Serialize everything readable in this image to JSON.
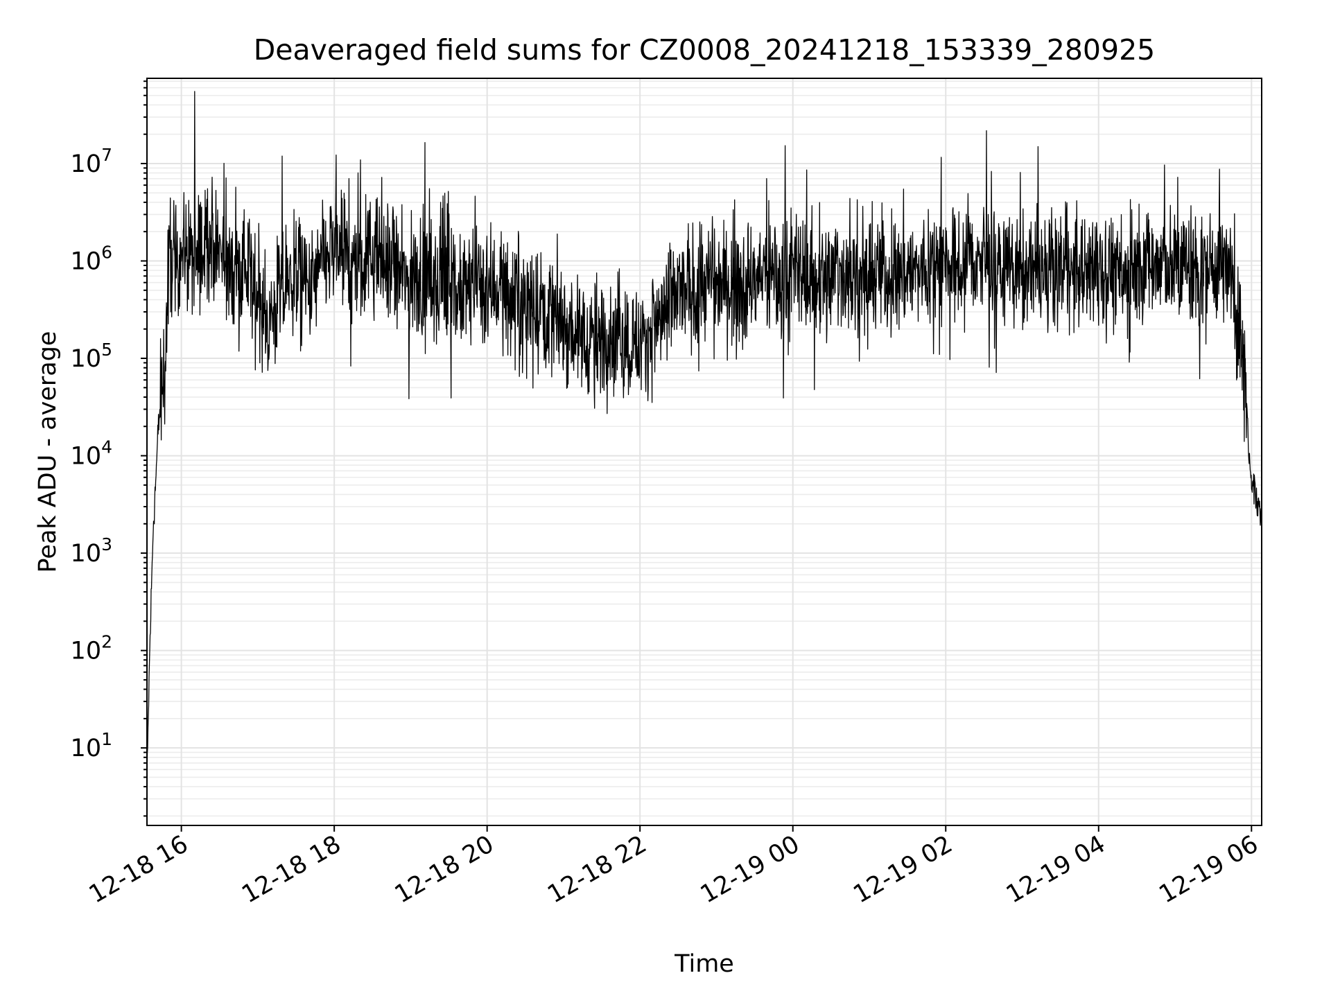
{
  "chart_data": {
    "type": "line",
    "title": "Deaveraged field sums for CZ0008_20241218_153339_280925",
    "xlabel": "Time",
    "ylabel": "Peak ADU - average",
    "yscale": "log",
    "ylim": [
      1.6,
      75000000
    ],
    "xlim": [
      "2024-12-18 15:33",
      "2024-12-19 06:08"
    ],
    "grid": true,
    "legend": "none",
    "line_color": "#000000",
    "x_ticks": [
      {
        "value": "2024-12-18 16:00",
        "label": "12-18 16"
      },
      {
        "value": "2024-12-18 18:00",
        "label": "12-18 18"
      },
      {
        "value": "2024-12-18 20:00",
        "label": "12-18 20"
      },
      {
        "value": "2024-12-18 22:00",
        "label": "12-18 22"
      },
      {
        "value": "2024-12-19 00:00",
        "label": "12-19 00"
      },
      {
        "value": "2024-12-19 02:00",
        "label": "12-19 02"
      },
      {
        "value": "2024-12-19 04:00",
        "label": "12-19 04"
      },
      {
        "value": "2024-12-19 06:00",
        "label": "12-19 06"
      }
    ],
    "y_ticks": [
      {
        "value": 10,
        "base": "10",
        "exp": "1"
      },
      {
        "value": 100,
        "base": "10",
        "exp": "2"
      },
      {
        "value": 1000,
        "base": "10",
        "exp": "3"
      },
      {
        "value": 10000,
        "base": "10",
        "exp": "4"
      },
      {
        "value": 100000,
        "base": "10",
        "exp": "5"
      },
      {
        "value": 1000000,
        "base": "10",
        "exp": "6"
      },
      {
        "value": 10000000,
        "base": "10",
        "exp": "7"
      }
    ],
    "series": [
      {
        "x": [
          "2024-12-18 15:33",
          "2024-12-18 15:35",
          "2024-12-18 15:38",
          "2024-12-18 15:40",
          "2024-12-18 15:42",
          "2024-12-18 15:45",
          "2024-12-18 15:48",
          "2024-12-18 15:50",
          "2024-12-18 15:52",
          "2024-12-18 15:55",
          "2024-12-18 16:00",
          "2024-12-18 16:10",
          "2024-12-18 16:20",
          "2024-12-18 16:30",
          "2024-12-18 16:40",
          "2024-12-18 16:50",
          "2024-12-18 17:00",
          "2024-12-18 17:10",
          "2024-12-18 17:20",
          "2024-12-18 17:30",
          "2024-12-18 17:40",
          "2024-12-18 17:50",
          "2024-12-18 18:00",
          "2024-12-18 18:10",
          "2024-12-18 18:20",
          "2024-12-18 18:30",
          "2024-12-18 18:40",
          "2024-12-18 18:50",
          "2024-12-18 19:00",
          "2024-12-18 19:10",
          "2024-12-18 19:20",
          "2024-12-18 19:30",
          "2024-12-18 19:40",
          "2024-12-18 19:50",
          "2024-12-18 20:00",
          "2024-12-18 20:10",
          "2024-12-18 20:20",
          "2024-12-18 20:30",
          "2024-12-18 20:40",
          "2024-12-18 20:50",
          "2024-12-18 21:00",
          "2024-12-18 21:10",
          "2024-12-18 21:20",
          "2024-12-18 21:30",
          "2024-12-18 21:40",
          "2024-12-18 21:50",
          "2024-12-18 22:00",
          "2024-12-18 22:10",
          "2024-12-18 22:20",
          "2024-12-18 22:30",
          "2024-12-18 22:40",
          "2024-12-18 22:50",
          "2024-12-18 23:00",
          "2024-12-18 23:10",
          "2024-12-18 23:20",
          "2024-12-18 23:30",
          "2024-12-18 23:40",
          "2024-12-18 23:50",
          "2024-12-19 00:00",
          "2024-12-19 00:10",
          "2024-12-19 00:20",
          "2024-12-19 00:30",
          "2024-12-19 00:40",
          "2024-12-19 00:50",
          "2024-12-19 01:00",
          "2024-12-19 01:10",
          "2024-12-19 01:20",
          "2024-12-19 01:30",
          "2024-12-19 01:40",
          "2024-12-19 01:50",
          "2024-12-19 02:00",
          "2024-12-19 02:10",
          "2024-12-19 02:20",
          "2024-12-19 02:30",
          "2024-12-19 02:40",
          "2024-12-19 02:50",
          "2024-12-19 03:00",
          "2024-12-19 03:10",
          "2024-12-19 03:20",
          "2024-12-19 03:30",
          "2024-12-19 03:40",
          "2024-12-19 03:50",
          "2024-12-19 04:00",
          "2024-12-19 04:10",
          "2024-12-19 04:20",
          "2024-12-19 04:30",
          "2024-12-19 04:40",
          "2024-12-19 04:50",
          "2024-12-19 05:00",
          "2024-12-19 05:10",
          "2024-12-19 05:20",
          "2024-12-19 05:30",
          "2024-12-19 05:40",
          "2024-12-19 05:45",
          "2024-12-19 05:50",
          "2024-12-19 05:55",
          "2024-12-19 05:58",
          "2024-12-19 06:00",
          "2024-12-19 06:03",
          "2024-12-19 06:06",
          "2024-12-19 06:08"
        ],
        "y": [
          4,
          80,
          2000,
          6000,
          20000,
          50000,
          150000,
          900000,
          1200000,
          800000,
          1500000,
          900000,
          2000000,
          1200000,
          700000,
          900000,
          400000,
          250000,
          500000,
          800000,
          450000,
          900000,
          1300000,
          1000000,
          800000,
          1200000,
          900000,
          700000,
          600000,
          700000,
          500000,
          600000,
          400000,
          700000,
          500000,
          600000,
          400000,
          450000,
          350000,
          300000,
          250000,
          180000,
          160000,
          150000,
          180000,
          150000,
          140000,
          200000,
          300000,
          450000,
          500000,
          600000,
          550000,
          650000,
          500000,
          600000,
          800000,
          600000,
          700000,
          750000,
          650000,
          700000,
          800000,
          650000,
          700000,
          800000,
          600000,
          900000,
          700000,
          1100000,
          800000,
          900000,
          1000000,
          1000000,
          800000,
          900000,
          700000,
          800000,
          600000,
          900000,
          700000,
          800000,
          800000,
          900000,
          600000,
          800000,
          1000000,
          900000,
          800000,
          1000000,
          700000,
          900000,
          1000000,
          500000,
          200000,
          80000,
          10000,
          6000,
          4000,
          3000,
          2000
        ]
      }
    ],
    "notes_visible": "dense noisy black line, values fluctuate roughly one order of magnitude around the trend"
  }
}
